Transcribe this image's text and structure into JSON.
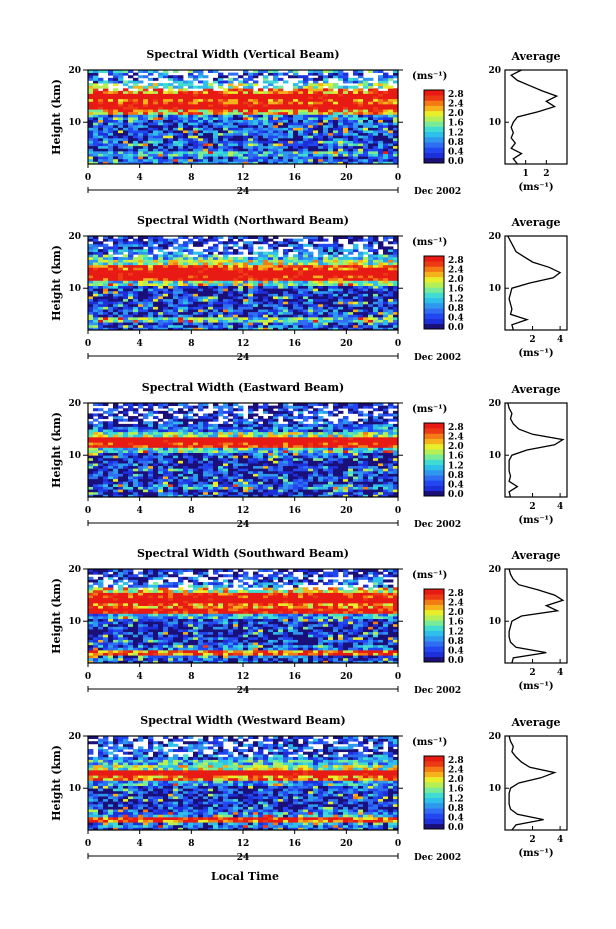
{
  "colors": {
    "scale": [
      "#1b0f7a",
      "#1c2fd8",
      "#2246f0",
      "#2f6ef2",
      "#2e98ef",
      "#2ec0ea",
      "#40dcd2",
      "#79eb98",
      "#b6ef55",
      "#e8ee2a",
      "#f6b21b",
      "#f47a14",
      "#ec3b14",
      "#e81a14"
    ]
  },
  "colorbar": {
    "unit": "(ms⁻¹)",
    "labels": [
      "0.0",
      "0.4",
      "0.8",
      "1.2",
      "1.6",
      "2.0",
      "2.4",
      "2.8"
    ]
  },
  "shared": {
    "time_ticks": [
      "0",
      "4",
      "8",
      "12",
      "16",
      "20",
      "0"
    ],
    "height_ticks": [
      "10",
      "20"
    ],
    "date_day": "24",
    "date_label": "Dec 2002",
    "ylabel": "Height (km)",
    "xlabel": "Local Time",
    "avg_title": "Average",
    "avg_unit": "(ms⁻¹)"
  },
  "panels": [
    {
      "title": "Spectral Width (Vertical Beam)",
      "avg_ticks": [
        "1",
        "2"
      ]
    },
    {
      "title": "Spectral Width (Northward Beam)",
      "avg_ticks": [
        "2",
        "4"
      ]
    },
    {
      "title": "Spectral Width (Eastward Beam)",
      "avg_ticks": [
        "2",
        "4"
      ]
    },
    {
      "title": "Spectral Width (Southward Beam)",
      "avg_ticks": [
        "2",
        "4"
      ]
    },
    {
      "title": "Spectral Width (Westward Beam)",
      "avg_ticks": [
        "2",
        "4"
      ]
    }
  ],
  "chart_data": [
    {
      "type": "heatmap",
      "title": "Spectral Width (Vertical Beam)",
      "xlabel": "",
      "ylabel": "Height (km)",
      "xlim": [
        0,
        24
      ],
      "ylim": [
        2,
        20
      ],
      "clim": [
        0.0,
        2.8
      ],
      "avg_xlim": [
        0,
        3
      ],
      "average_profile": {
        "height_km": [
          2,
          3,
          4,
          5,
          6,
          7,
          8,
          9,
          10,
          11,
          12,
          13,
          14,
          15,
          16,
          17,
          18,
          19,
          20
        ],
        "width": [
          0.6,
          0.4,
          0.8,
          0.3,
          0.5,
          0.3,
          0.4,
          0.3,
          0.4,
          0.6,
          1.6,
          2.4,
          2.0,
          2.5,
          1.8,
          1.2,
          0.6,
          0.3,
          0.8
        ]
      }
    },
    {
      "type": "heatmap",
      "title": "Spectral Width (Northward Beam)",
      "xlabel": "",
      "ylabel": "Height (km)",
      "xlim": [
        0,
        24
      ],
      "ylim": [
        2,
        20
      ],
      "clim": [
        0.0,
        2.8
      ],
      "avg_xlim": [
        0,
        4.5
      ],
      "average_profile": {
        "height_km": [
          2,
          3,
          4,
          5,
          6,
          7,
          8,
          9,
          10,
          11,
          12,
          13,
          14,
          15,
          16,
          17,
          18,
          19,
          20
        ],
        "width": [
          0.6,
          0.5,
          1.6,
          0.4,
          0.5,
          0.4,
          0.3,
          0.4,
          0.5,
          1.8,
          3.5,
          4.0,
          3.2,
          2.0,
          1.4,
          0.8,
          0.6,
          0.4,
          0.2
        ]
      }
    },
    {
      "type": "heatmap",
      "title": "Spectral Width (Eastward Beam)",
      "xlabel": "",
      "ylabel": "Height (km)",
      "xlim": [
        0,
        24
      ],
      "ylim": [
        2,
        20
      ],
      "clim": [
        0.0,
        2.8
      ],
      "avg_xlim": [
        0,
        4.5
      ],
      "average_profile": {
        "height_km": [
          2,
          3,
          4,
          5,
          6,
          7,
          8,
          9,
          10,
          11,
          12,
          13,
          14,
          15,
          16,
          17,
          18,
          19,
          20
        ],
        "width": [
          0.4,
          0.3,
          0.9,
          0.3,
          0.4,
          0.3,
          0.3,
          0.3,
          0.5,
          1.6,
          3.6,
          4.2,
          2.0,
          1.0,
          0.6,
          0.4,
          0.5,
          0.3,
          0.2
        ]
      }
    },
    {
      "type": "heatmap",
      "title": "Spectral Width (Southward Beam)",
      "xlabel": "",
      "ylabel": "Height (km)",
      "xlim": [
        0,
        24
      ],
      "ylim": [
        2,
        20
      ],
      "clim": [
        0.0,
        2.8
      ],
      "avg_xlim": [
        0,
        4.5
      ],
      "average_profile": {
        "height_km": [
          2,
          3,
          4,
          5,
          6,
          7,
          8,
          9,
          10,
          11,
          12,
          13,
          14,
          15,
          16,
          17,
          18,
          19,
          20
        ],
        "width": [
          0.5,
          0.6,
          3.0,
          0.8,
          0.4,
          0.3,
          0.3,
          0.4,
          0.5,
          1.2,
          3.8,
          3.0,
          4.2,
          3.6,
          2.4,
          1.0,
          0.6,
          0.4,
          0.3
        ]
      }
    },
    {
      "type": "heatmap",
      "title": "Spectral Width (Westward Beam)",
      "xlabel": "Local Time",
      "ylabel": "Height (km)",
      "xlim": [
        0,
        24
      ],
      "ylim": [
        2,
        20
      ],
      "clim": [
        0.0,
        2.8
      ],
      "avg_xlim": [
        0,
        4.5
      ],
      "average_profile": {
        "height_km": [
          2,
          3,
          4,
          5,
          6,
          7,
          8,
          9,
          10,
          11,
          12,
          13,
          14,
          15,
          16,
          17,
          18,
          19,
          20
        ],
        "width": [
          0.5,
          0.8,
          2.8,
          0.9,
          0.4,
          0.3,
          0.3,
          0.3,
          0.4,
          1.0,
          2.6,
          3.6,
          1.8,
          1.2,
          0.8,
          0.5,
          0.6,
          0.4,
          0.3
        ]
      }
    }
  ]
}
